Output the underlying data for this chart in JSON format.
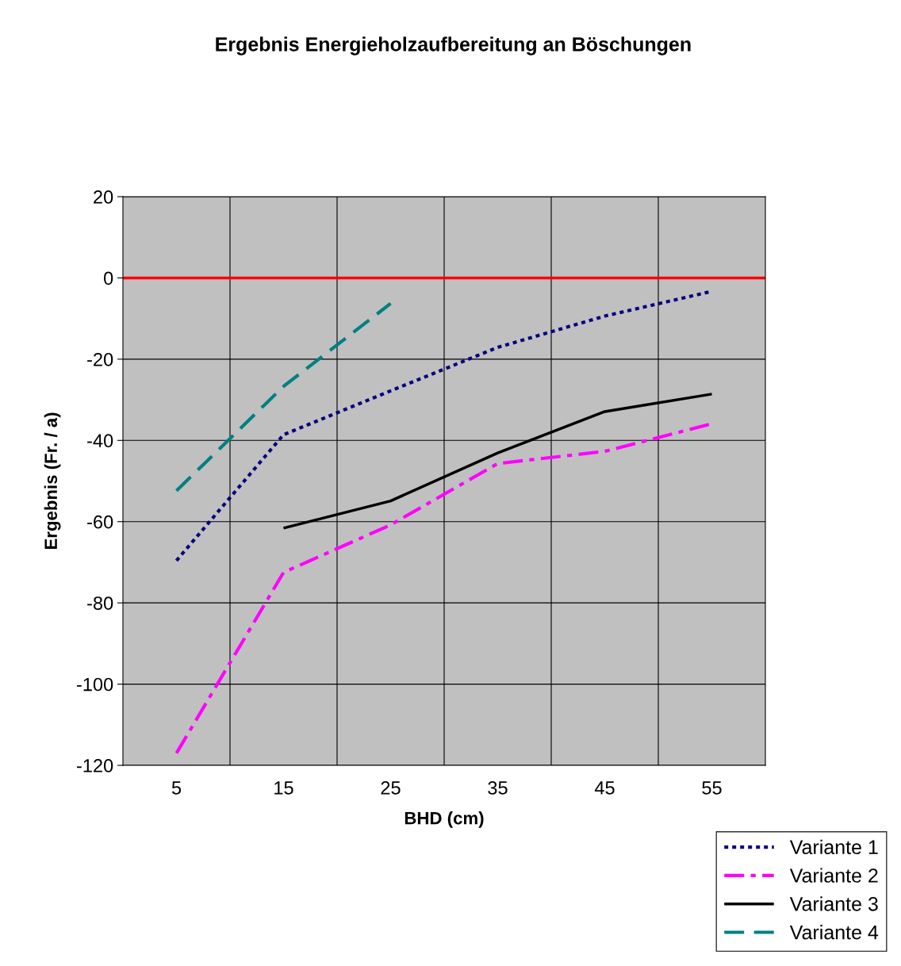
{
  "chart_data": {
    "type": "line",
    "title": "Ergebnis Energieholzaufbereitung an Böschungen",
    "xlabel": "BHD (cm)",
    "ylabel": "Ergebnis (Fr. / a)",
    "categories": [
      "5",
      "15",
      "25",
      "35",
      "45",
      "55"
    ],
    "series": [
      {
        "name": "Variante 1",
        "color": "#000080",
        "line_style": "dotted",
        "values": [
          -69.6,
          -38.6,
          -27.8,
          -17.1,
          -9.4,
          -3.3
        ]
      },
      {
        "name": "Variante 2",
        "color": "#ff00ff",
        "line_style": "dashdot",
        "values": [
          -117,
          -72.5,
          -60.8,
          -45.7,
          -42.7,
          -35.9
        ]
      },
      {
        "name": "Variante 3",
        "color": "#000000",
        "line_style": "solid",
        "values": [
          null,
          -61.6,
          -54.9,
          -43.1,
          -32.9,
          -28.6
        ]
      },
      {
        "name": "Variante 4",
        "color": "#008080",
        "line_style": "dashed",
        "values": [
          -52.4,
          -26.7,
          -6.3,
          null,
          null,
          null
        ]
      }
    ],
    "ylim": [
      -120,
      20
    ],
    "yticks": [
      -120,
      -100,
      -80,
      -60,
      -40,
      -20,
      0,
      20
    ],
    "ref_lines": [
      {
        "axis": "y",
        "value": 0,
        "color": "#ff0000"
      }
    ],
    "grid": true,
    "legend": "bottom right",
    "marker": "none"
  }
}
